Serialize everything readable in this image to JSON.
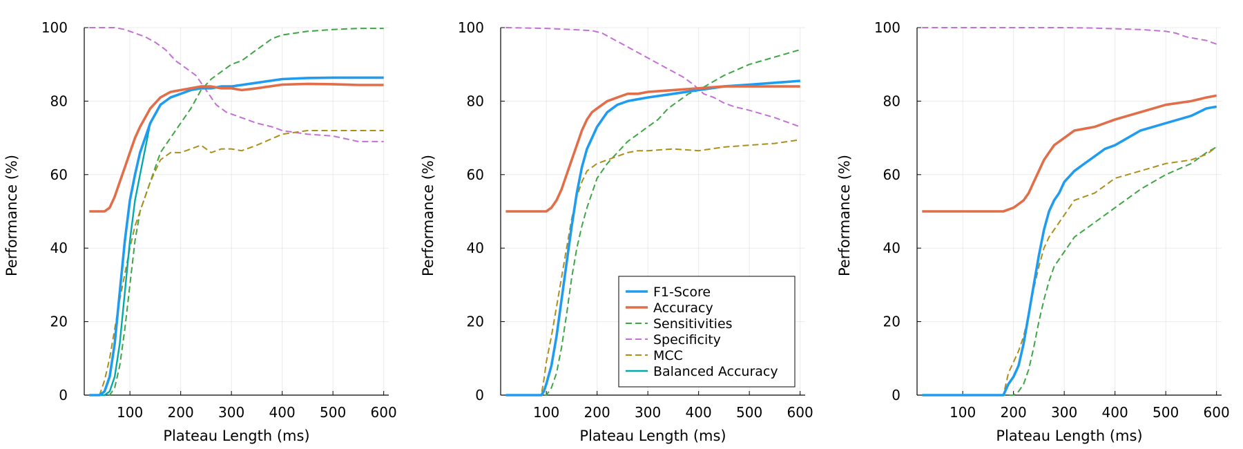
{
  "chart_data": [
    {
      "type": "line",
      "xlabel": "Plateau Length (ms)",
      "ylabel": "Performance (%)",
      "xlim": [
        10,
        610
      ],
      "ylim": [
        0,
        100
      ],
      "xticks": [
        "100",
        "200",
        "300",
        "400",
        "500",
        "600"
      ],
      "yticks": [
        "0",
        "20",
        "40",
        "60",
        "80",
        "100"
      ],
      "grid": true,
      "legend": null,
      "series": [
        {
          "name": "F1-Score",
          "x": [
            20,
            40,
            50,
            60,
            70,
            80,
            90,
            100,
            110,
            120,
            140,
            160,
            180,
            200,
            220,
            240,
            260,
            280,
            300,
            350,
            400,
            450,
            500,
            550,
            600
          ],
          "values": [
            0,
            0,
            1,
            5,
            14,
            28,
            42,
            53,
            60,
            66,
            74,
            79,
            81,
            82,
            83,
            83.5,
            83.5,
            84,
            84,
            85,
            86,
            86.3,
            86.4,
            86.4,
            86.4
          ]
        },
        {
          "name": "Accuracy",
          "x": [
            20,
            50,
            60,
            70,
            80,
            90,
            100,
            110,
            120,
            140,
            160,
            180,
            200,
            220,
            240,
            260,
            280,
            300,
            320,
            350,
            400,
            450,
            500,
            550,
            600
          ],
          "values": [
            50,
            50,
            51,
            54,
            58,
            62,
            66,
            70,
            73,
            78,
            81,
            82.5,
            83,
            83.5,
            84,
            84,
            83.5,
            83.5,
            83,
            83.5,
            84.5,
            84.7,
            84.6,
            84.4,
            84.4
          ]
        },
        {
          "name": "Sensitivities",
          "x": [
            20,
            50,
            60,
            70,
            80,
            90,
            100,
            110,
            120,
            140,
            160,
            180,
            200,
            220,
            240,
            260,
            280,
            300,
            320,
            340,
            360,
            380,
            400,
            450,
            500,
            550,
            600
          ],
          "values": [
            0,
            0,
            0,
            2,
            8,
            18,
            30,
            42,
            50,
            58,
            66,
            70,
            74,
            78,
            83,
            86,
            88,
            90,
            91,
            93,
            95,
            97,
            98,
            99,
            99.5,
            99.8,
            99.8
          ]
        },
        {
          "name": "Specificity",
          "x": [
            20,
            50,
            70,
            90,
            110,
            130,
            150,
            170,
            190,
            210,
            230,
            250,
            270,
            290,
            310,
            330,
            350,
            380,
            400,
            450,
            500,
            550,
            600
          ],
          "values": [
            100,
            100,
            100,
            99.5,
            98.5,
            97.5,
            96,
            94,
            91,
            89,
            87,
            83,
            79,
            77,
            76,
            75,
            74,
            73,
            72,
            71,
            70.5,
            69,
            69
          ]
        },
        {
          "name": "MCC",
          "x": [
            20,
            40,
            50,
            60,
            70,
            80,
            90,
            100,
            110,
            120,
            140,
            160,
            180,
            200,
            220,
            240,
            260,
            280,
            300,
            320,
            350,
            400,
            450,
            500,
            550,
            600
          ],
          "values": [
            0,
            0,
            4,
            10,
            18,
            26,
            33,
            40,
            46,
            50,
            58,
            64,
            66,
            66,
            67,
            68,
            66,
            67,
            67,
            66.5,
            68,
            71,
            72,
            72,
            72,
            72
          ]
        },
        {
          "name": "Balanced Accuracy",
          "x": [
            20,
            50,
            60,
            70,
            80,
            90,
            100,
            110,
            120,
            140,
            160,
            180,
            200,
            220,
            240,
            260,
            280,
            300,
            350,
            400,
            450,
            500,
            550,
            600
          ],
          "values": [
            0,
            0,
            1,
            5,
            14,
            28,
            42,
            53,
            60,
            74,
            79,
            81,
            82,
            83,
            83.5,
            83.5,
            84,
            84,
            85,
            86,
            86.3,
            86.4,
            86.4,
            86.4
          ]
        }
      ]
    },
    {
      "type": "line",
      "xlabel": "Plateau Length (ms)",
      "ylabel": "Performance (%)",
      "xlim": [
        10,
        610
      ],
      "ylim": [
        0,
        100
      ],
      "xticks": [
        "100",
        "200",
        "300",
        "400",
        "500",
        "600"
      ],
      "yticks": [
        "0",
        "20",
        "40",
        "60",
        "80",
        "100"
      ],
      "grid": true,
      "legend": "bottom-right",
      "series": [
        {
          "name": "F1-Score",
          "x": [
            20,
            90,
            95,
            100,
            110,
            120,
            130,
            140,
            150,
            160,
            170,
            180,
            190,
            200,
            220,
            240,
            260,
            280,
            300,
            350,
            400,
            450,
            500,
            550,
            600
          ],
          "values": [
            0,
            0,
            1,
            3,
            8,
            16,
            26,
            36,
            46,
            55,
            62,
            67,
            70,
            73,
            77,
            79,
            80,
            80.5,
            81,
            82,
            83,
            84,
            84.5,
            85,
            85.5
          ]
        },
        {
          "name": "Accuracy",
          "x": [
            20,
            80,
            100,
            110,
            120,
            130,
            140,
            150,
            160,
            170,
            180,
            190,
            200,
            220,
            240,
            260,
            280,
            300,
            350,
            400,
            450,
            500,
            550,
            600
          ],
          "values": [
            50,
            50,
            50,
            51,
            53,
            56,
            60,
            64,
            68,
            72,
            75,
            77,
            78,
            80,
            81,
            82,
            82,
            82.5,
            83,
            83.5,
            84,
            84,
            84,
            84
          ]
        },
        {
          "name": "Sensitivities",
          "x": [
            20,
            90,
            100,
            110,
            120,
            130,
            140,
            150,
            160,
            170,
            180,
            190,
            200,
            220,
            240,
            260,
            280,
            300,
            320,
            340,
            360,
            380,
            400,
            450,
            500,
            550,
            600
          ],
          "values": [
            0,
            0,
            0,
            2,
            6,
            13,
            22,
            32,
            40,
            46,
            51,
            55,
            59,
            63,
            66,
            69,
            71,
            73,
            75,
            78,
            80,
            82,
            83,
            87,
            90,
            92,
            94
          ]
        },
        {
          "name": "Specificity",
          "x": [
            20,
            100,
            150,
            190,
            210,
            230,
            250,
            270,
            290,
            310,
            330,
            350,
            370,
            390,
            410,
            430,
            450,
            470,
            500,
            550,
            600
          ],
          "values": [
            100,
            99.8,
            99.5,
            99.2,
            98.5,
            97,
            95.5,
            94,
            92.5,
            91,
            89.5,
            88,
            86.5,
            84.5,
            82,
            81,
            79.5,
            78.5,
            77.5,
            75.5,
            73
          ]
        },
        {
          "name": "MCC",
          "x": [
            20,
            90,
            95,
            100,
            110,
            120,
            130,
            140,
            150,
            160,
            170,
            180,
            190,
            200,
            220,
            240,
            260,
            280,
            300,
            350,
            400,
            450,
            500,
            550,
            600
          ],
          "values": [
            0,
            0,
            4,
            9,
            16,
            24,
            32,
            40,
            48,
            54,
            58,
            61,
            62,
            63,
            64,
            65,
            66,
            66.5,
            66.5,
            67,
            66.5,
            67.5,
            68,
            68.5,
            69.5
          ]
        },
        {
          "name": "Balanced Accuracy",
          "x": [
            20,
            90,
            95,
            100,
            110,
            120,
            130,
            140,
            150,
            160,
            170,
            180,
            190,
            200,
            220,
            240,
            260,
            280,
            300,
            350,
            400,
            450,
            500,
            550,
            600
          ],
          "values": [
            0,
            0,
            1,
            3,
            8,
            16,
            26,
            36,
            46,
            55,
            62,
            67,
            70,
            73,
            77,
            79,
            80,
            80.5,
            81,
            82,
            83,
            84,
            84.5,
            85,
            85.5
          ]
        }
      ]
    },
    {
      "type": "line",
      "xlabel": "Plateau Length (ms)",
      "ylabel": "Performance (%)",
      "xlim": [
        10,
        610
      ],
      "ylim": [
        0,
        100
      ],
      "xticks": [
        "100",
        "200",
        "300",
        "400",
        "500",
        "600"
      ],
      "yticks": [
        "0",
        "20",
        "40",
        "60",
        "80",
        "100"
      ],
      "grid": true,
      "legend": null,
      "series": [
        {
          "name": "F1-Score",
          "x": [
            20,
            180,
            190,
            200,
            210,
            220,
            230,
            240,
            250,
            260,
            270,
            280,
            290,
            300,
            320,
            340,
            360,
            380,
            400,
            450,
            500,
            550,
            580,
            600
          ],
          "values": [
            0,
            0,
            3,
            5,
            8,
            14,
            22,
            30,
            38,
            45,
            50,
            53,
            55,
            58,
            61,
            63,
            65,
            67,
            68,
            72,
            74,
            76,
            78,
            78.5
          ]
        },
        {
          "name": "Accuracy",
          "x": [
            20,
            180,
            190,
            200,
            210,
            220,
            230,
            240,
            250,
            260,
            270,
            280,
            290,
            300,
            320,
            340,
            360,
            380,
            400,
            450,
            500,
            550,
            580,
            600
          ],
          "values": [
            50,
            50,
            50.5,
            51,
            52,
            53,
            55,
            58,
            61,
            64,
            66,
            68,
            69,
            70,
            72,
            72.5,
            73,
            74,
            75,
            77,
            79,
            80,
            81,
            81.5
          ]
        },
        {
          "name": "Sensitivities",
          "x": [
            20,
            180,
            200,
            210,
            220,
            230,
            240,
            250,
            260,
            270,
            280,
            290,
            300,
            320,
            340,
            360,
            380,
            400,
            450,
            500,
            550,
            580,
            600
          ],
          "values": [
            0,
            0,
            0,
            1,
            3,
            7,
            13,
            20,
            26,
            31,
            35,
            37,
            39,
            43,
            45,
            47,
            49,
            51,
            56,
            60,
            63,
            66,
            67.5
          ]
        },
        {
          "name": "Specificity",
          "x": [
            20,
            200,
            300,
            350,
            400,
            450,
            500,
            520,
            540,
            560,
            580,
            600
          ],
          "values": [
            100,
            100,
            100,
            99.9,
            99.7,
            99.5,
            99,
            98.5,
            97.5,
            97,
            96.5,
            95.5
          ]
        },
        {
          "name": "MCC",
          "x": [
            20,
            180,
            190,
            200,
            210,
            220,
            230,
            240,
            250,
            260,
            270,
            280,
            290,
            300,
            320,
            340,
            360,
            380,
            400,
            450,
            500,
            550,
            580,
            600
          ],
          "values": [
            0,
            0,
            6,
            9,
            12,
            16,
            22,
            29,
            35,
            40,
            43,
            45,
            47,
            49,
            53,
            54,
            55,
            57,
            59,
            61,
            63,
            64,
            65.5,
            67.5
          ]
        },
        {
          "name": "Balanced Accuracy",
          "x": [
            20,
            180,
            190,
            200,
            210,
            220,
            230,
            240,
            250,
            260,
            270,
            280,
            290,
            300,
            320,
            340,
            360,
            380,
            400,
            450,
            500,
            550,
            580,
            600
          ],
          "values": [
            0,
            0,
            3,
            5,
            8,
            14,
            22,
            30,
            38,
            45,
            50,
            53,
            55,
            58,
            61,
            63,
            65,
            67,
            68,
            72,
            74,
            76,
            78,
            78.5
          ]
        }
      ]
    }
  ],
  "series_styles": [
    {
      "name": "F1-Score",
      "color": "#1f9bef",
      "width": 3.6,
      "dash": "solid"
    },
    {
      "name": "Accuracy",
      "color": "#e26e49",
      "width": 3.6,
      "dash": "solid"
    },
    {
      "name": "Sensitivities",
      "color": "#3da543",
      "width": 2.0,
      "dash": "dashed"
    },
    {
      "name": "Specificity",
      "color": "#c36fd6",
      "width": 2.0,
      "dash": "dashed"
    },
    {
      "name": "MCC",
      "color": "#ac8e18",
      "width": 2.0,
      "dash": "dashed"
    },
    {
      "name": "Balanced Accuracy",
      "color": "#00a9ad",
      "width": 2.4,
      "dash": "solid"
    }
  ]
}
